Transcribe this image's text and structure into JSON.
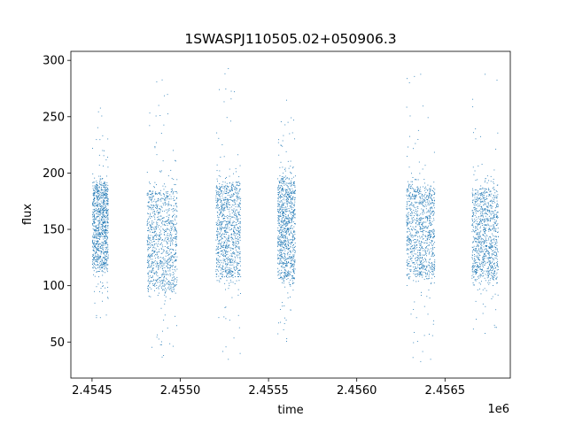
{
  "chart_data": {
    "type": "scatter",
    "title": "1SWASPJ110505.02+050906.3",
    "xlabel": "time",
    "ylabel": "flux",
    "x_offset_label": "1e6",
    "xlim": [
      2454380,
      2456870
    ],
    "ylim": [
      18,
      308
    ],
    "x_ticks": [
      2454500,
      2455000,
      2455500,
      2456000,
      2456500
    ],
    "x_tick_labels": [
      "2.4545",
      "2.4550",
      "2.4555",
      "2.4560",
      "2.4565"
    ],
    "y_ticks": [
      50,
      100,
      150,
      200,
      250,
      300
    ],
    "y_tick_labels": [
      "50",
      "100",
      "150",
      "200",
      "250",
      "300"
    ],
    "grid": false,
    "marker_color": "#1f77b4",
    "segments": [
      {
        "x_start": 2454500,
        "x_end": 2454590,
        "core_low": 113,
        "core_high": 195,
        "min": 72,
        "max": 258
      },
      {
        "x_start": 2454810,
        "x_end": 2454980,
        "core_low": 92,
        "core_high": 190,
        "min": 37,
        "max": 283
      },
      {
        "x_start": 2455200,
        "x_end": 2455340,
        "core_low": 105,
        "core_high": 195,
        "min": 35,
        "max": 293
      },
      {
        "x_start": 2455550,
        "x_end": 2455650,
        "core_low": 103,
        "core_high": 200,
        "min": 51,
        "max": 265
      },
      {
        "x_start": 2456280,
        "x_end": 2456440,
        "core_low": 105,
        "core_high": 192,
        "min": 33,
        "max": 288
      },
      {
        "x_start": 2456650,
        "x_end": 2456800,
        "core_low": 103,
        "core_high": 190,
        "min": 58,
        "max": 288
      }
    ]
  }
}
